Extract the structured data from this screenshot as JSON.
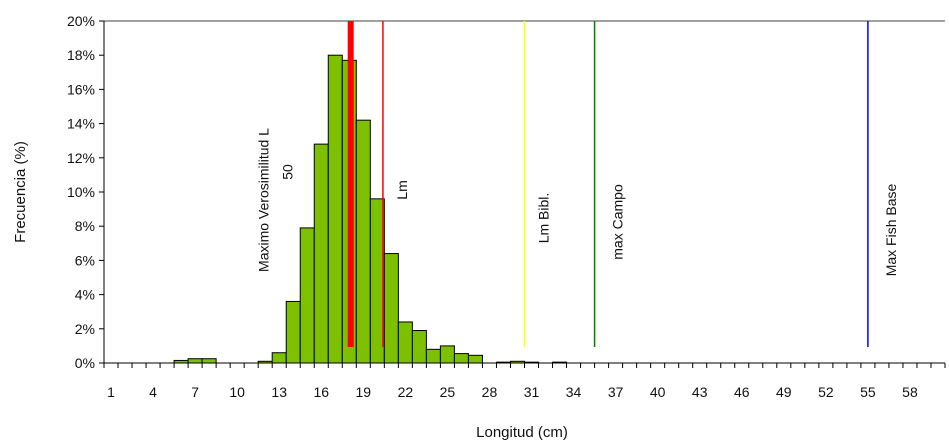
{
  "chart_data": {
    "type": "bar",
    "xlabel": "Longitud (cm)",
    "ylabel": "Frecuencia (%)",
    "ylim": [
      0,
      20
    ],
    "y_unit": "%",
    "y_ticks": [
      "0%",
      "2%",
      "4%",
      "6%",
      "8%",
      "10%",
      "12%",
      "14%",
      "16%",
      "18%",
      "20%"
    ],
    "x_tick_labels": [
      "1",
      "4",
      "7",
      "10",
      "13",
      "16",
      "19",
      "22",
      "25",
      "28",
      "31",
      "34",
      "37",
      "40",
      "43",
      "46",
      "49",
      "52",
      "55",
      "58"
    ],
    "categories": [
      1,
      2,
      3,
      4,
      5,
      6,
      7,
      8,
      9,
      10,
      11,
      12,
      13,
      14,
      15,
      16,
      17,
      18,
      19,
      20,
      21,
      22,
      23,
      24,
      25,
      26,
      27,
      28,
      29,
      30,
      31,
      32,
      33,
      34,
      35,
      36,
      37,
      38,
      39,
      40,
      41,
      42,
      43,
      44,
      45,
      46,
      47,
      48,
      49,
      50,
      51,
      52,
      53,
      54,
      55,
      56,
      57,
      58,
      59,
      60
    ],
    "values": [
      0,
      0,
      0,
      0,
      0,
      0.15,
      0.25,
      0.25,
      0,
      0,
      0,
      0.1,
      0.6,
      3.6,
      7.9,
      12.8,
      18.0,
      17.7,
      14.2,
      9.6,
      6.4,
      2.4,
      1.9,
      0.8,
      1.0,
      0.55,
      0.45,
      0,
      0.05,
      0.1,
      0.05,
      0,
      0.05,
      0,
      0,
      0,
      0,
      0,
      0,
      0,
      0,
      0,
      0,
      0,
      0,
      0,
      0,
      0,
      0,
      0,
      0,
      0,
      0,
      0,
      0,
      0,
      0,
      0,
      0,
      0
    ],
    "bar_color": "#7dc000",
    "grid": false,
    "reference_lines": [
      {
        "x": 18.1,
        "label": "Maximo Verosimilitud L",
        "sublabel": "50",
        "color": "#ff0000",
        "width": 6
      },
      {
        "x": 20.4,
        "label": "Lm",
        "color": "#ff0000",
        "width": 1.5
      },
      {
        "x": 30.5,
        "label": "Lm Bibl.",
        "color": "#ffff00",
        "width": 1.5
      },
      {
        "x": 35.5,
        "label": "max Campo",
        "color": "#008000",
        "width": 1.5
      },
      {
        "x": 55.0,
        "label": "Max Fish Base",
        "color": "#0000ff",
        "width": 1.5
      }
    ]
  }
}
